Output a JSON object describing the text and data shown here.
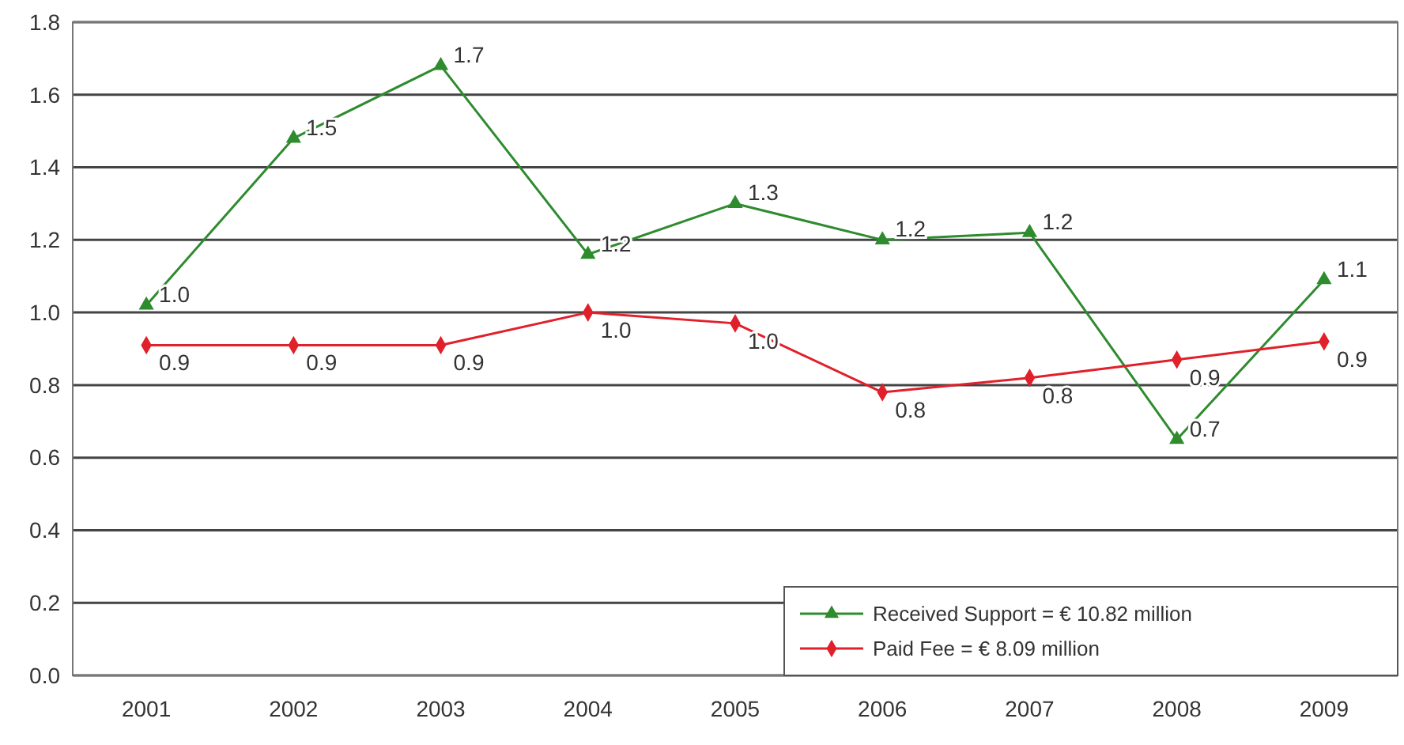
{
  "chart_data": {
    "type": "line",
    "categories": [
      "2001",
      "2002",
      "2003",
      "2004",
      "2005",
      "2006",
      "2007",
      "2008",
      "2009"
    ],
    "series": [
      {
        "name": "Received Support = € 10.82 million",
        "color": "#2e8b2e",
        "marker": "triangle",
        "values": [
          1.02,
          1.48,
          1.68,
          1.16,
          1.3,
          1.2,
          1.22,
          0.65,
          1.09
        ],
        "value_labels": [
          "1.0",
          "1.5",
          "1.7",
          "1.2",
          "1.3",
          "1.2",
          "1.2",
          "0.7",
          "1.1"
        ]
      },
      {
        "name": "Paid Fee = € 8.09 million",
        "color": "#e0202a",
        "marker": "diamond",
        "values": [
          0.91,
          0.91,
          0.91,
          1.0,
          0.97,
          0.78,
          0.82,
          0.87,
          0.92
        ],
        "value_labels": [
          "0.9",
          "0.9",
          "0.9",
          "1.0",
          "1.0",
          "0.8",
          "0.8",
          "0.9",
          "0.9"
        ]
      }
    ],
    "ylim": [
      0,
      1.8
    ],
    "yticks": [
      {
        "value": 0,
        "label": "0.0"
      },
      0.2,
      0.4,
      0.6,
      0.8,
      {
        "value": 1,
        "label": "1.0"
      },
      1.2,
      1.4,
      1.6,
      1.8
    ],
    "grid": "y",
    "legend": "bottom right"
  }
}
